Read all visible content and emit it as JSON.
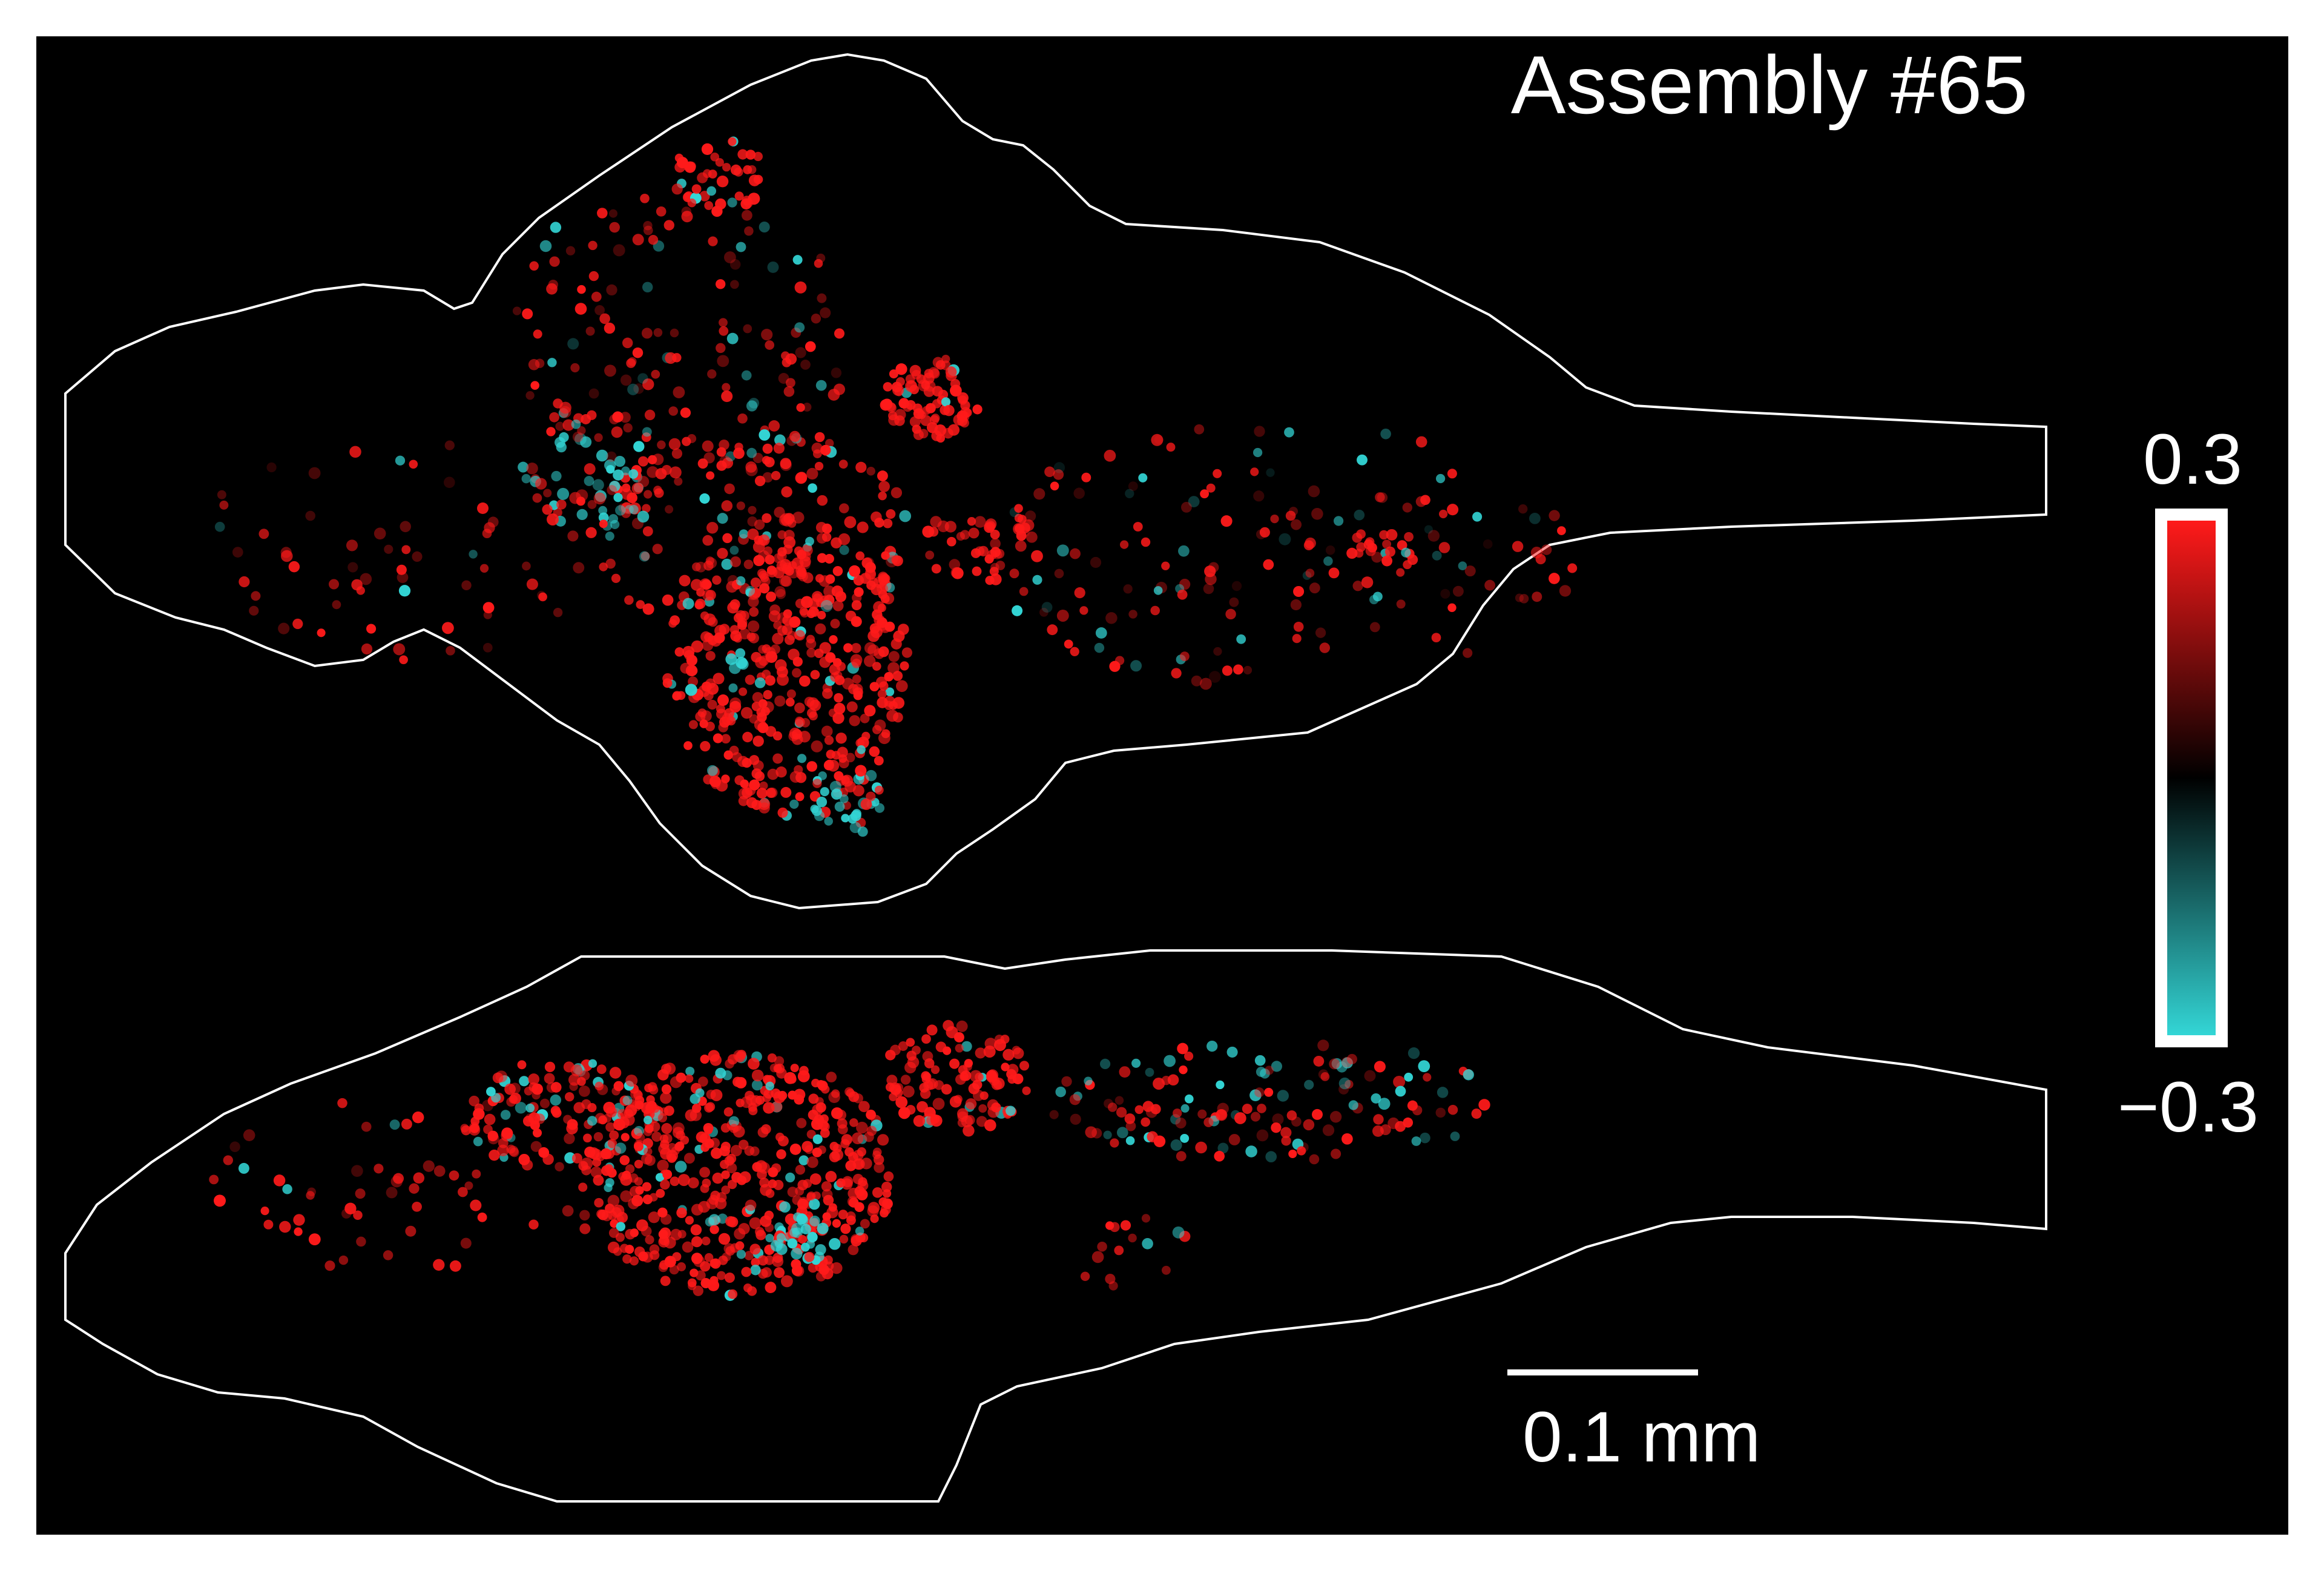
{
  "figure": {
    "title": "Assembly #65",
    "scale_bar_label": "0.1 mm",
    "colorbar": {
      "max_label": "0.3",
      "min_label": "−0.3",
      "colors": {
        "high": "#ff1a1a",
        "mid": "#000000",
        "low": "#33d6d6"
      }
    },
    "background": "#000000",
    "outline_color": "#ffffff"
  }
}
